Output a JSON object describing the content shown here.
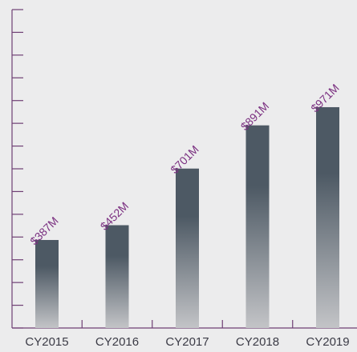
{
  "chart_data": {
    "type": "bar",
    "categories": [
      "CY2015",
      "CY2016",
      "CY2017",
      "CY2018",
      "CY2019"
    ],
    "values": [
      387,
      452,
      701,
      891,
      971
    ],
    "data_labels": [
      "$387M",
      "$452M",
      "$701M",
      "$891M",
      "$971M"
    ],
    "title": "",
    "xlabel": "",
    "ylabel": "",
    "ylim": [
      0,
      1400
    ],
    "grid": false,
    "legend": "none",
    "bar_gradient_top": "#4d5964",
    "bar_gradient_bottom": "#c3c4c7",
    "axis_color": "#6f3f74",
    "label_color": "#7a2f80",
    "tick_label_color": "#3b3b46",
    "y_tick_count": 14
  }
}
